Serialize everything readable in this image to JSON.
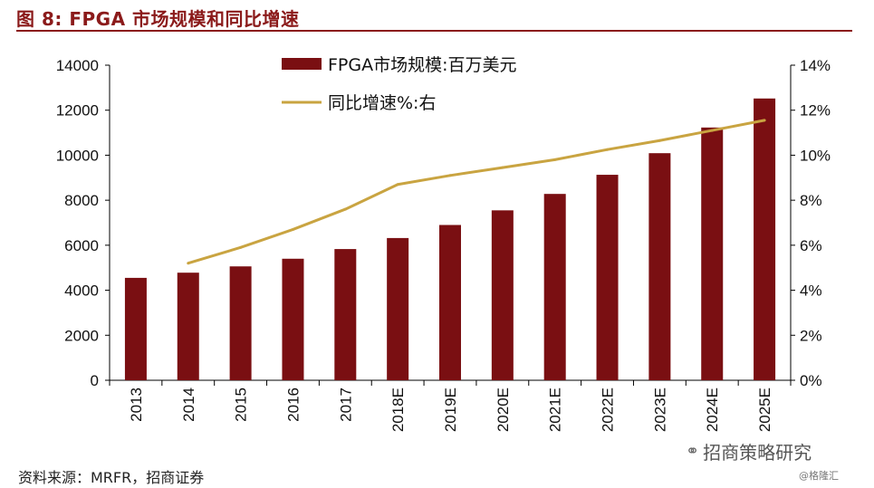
{
  "header": {
    "title": "图 8:  FPGA 市场规模和同比增速"
  },
  "footer": {
    "source": "资料来源：MRFR，招商证券",
    "watermark": "招商策略研究",
    "corner_mark": "@格隆汇"
  },
  "colors": {
    "bar": "#7a0f12",
    "line": "#c9a441",
    "title": "#8b1a1a",
    "axis": "#000000"
  },
  "icons": {
    "watermark": "wechat-icon"
  },
  "chart_data": {
    "type": "bar",
    "categories": [
      "2013",
      "2014",
      "2015",
      "2016",
      "2017",
      "2018E",
      "2019E",
      "2020E",
      "2021E",
      "2022E",
      "2023E",
      "2024E",
      "2025E"
    ],
    "series": [
      {
        "name": "FPGA市场规模:百万美元",
        "type": "bar",
        "axis": "left",
        "values": [
          4550,
          4780,
          5060,
          5400,
          5830,
          6320,
          6900,
          7550,
          8280,
          9130,
          10090,
          11230,
          12520
        ]
      },
      {
        "name": "同比增速%:右",
        "type": "line",
        "axis": "right",
        "values": [
          null,
          5.2,
          5.9,
          6.7,
          7.6,
          8.7,
          9.1,
          9.45,
          9.8,
          10.25,
          10.65,
          11.1,
          11.55
        ]
      }
    ],
    "y_left": {
      "min": 0,
      "max": 14000,
      "ticks": [
        0,
        2000,
        4000,
        6000,
        8000,
        10000,
        12000,
        14000
      ]
    },
    "y_right": {
      "min": 0,
      "max": 14,
      "ticks": [
        "0%",
        "2%",
        "4%",
        "6%",
        "8%",
        "10%",
        "12%",
        "14%"
      ]
    },
    "legend_placement": "top-center",
    "grid": false
  }
}
